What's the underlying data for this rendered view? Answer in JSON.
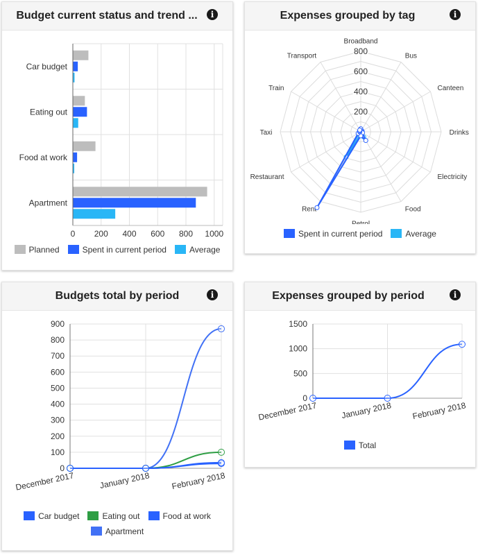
{
  "cards": {
    "budget_status": {
      "title": "Budget current status and trend ...",
      "info": "i",
      "legend": [
        {
          "label": "Planned",
          "color": "#bdbdbd"
        },
        {
          "label": "Spent in current period",
          "color": "#2962ff"
        },
        {
          "label": "Average",
          "color": "#29b6f6"
        }
      ]
    },
    "expenses_tag": {
      "title": "Expenses grouped by tag",
      "info": "i",
      "legend": [
        {
          "label": "Spent in current period",
          "color": "#2962ff"
        },
        {
          "label": "Average",
          "color": "#29b6f6"
        }
      ]
    },
    "budgets_period": {
      "title": "Budgets total by period",
      "info": "i",
      "legend_row1": [
        {
          "label": "Car budget",
          "color": "#2962ff"
        },
        {
          "label": "Eating out",
          "color": "#2e9e44"
        },
        {
          "label": "Food at work",
          "color": "#2962ff"
        }
      ],
      "legend_row2": [
        {
          "label": "Apartment",
          "color": "#4171f5"
        }
      ]
    },
    "expenses_period": {
      "title": "Expenses grouped by period",
      "info": "i",
      "legend": [
        {
          "label": "Total",
          "color": "#2962ff"
        }
      ]
    }
  },
  "chart_data": [
    {
      "type": "bar",
      "orientation": "horizontal",
      "categories": [
        "Car budget",
        "Eating out",
        "Food at work",
        "Apartment"
      ],
      "series": [
        {
          "name": "Planned",
          "color": "#bdbdbd",
          "values": [
            110,
            85,
            160,
            950
          ]
        },
        {
          "name": "Spent in current period",
          "color": "#2962ff",
          "values": [
            35,
            100,
            30,
            870
          ]
        },
        {
          "name": "Average",
          "color": "#29b6f6",
          "values": [
            12,
            38,
            10,
            300
          ]
        }
      ],
      "xlim": [
        0,
        1060
      ],
      "xticks": [
        0,
        200,
        400,
        600,
        800,
        1000
      ],
      "grid": true,
      "legend": "bottom"
    },
    {
      "type": "radar",
      "axes": [
        "Broadband",
        "Bus",
        "Canteen",
        "Drinks",
        "Electricity",
        "Food",
        "Petrol",
        "Rent",
        "Restaurant",
        "Taxi",
        "Train",
        "Transport"
      ],
      "rlim": [
        0,
        800
      ],
      "rticks": [
        200,
        400,
        600,
        800
      ],
      "series": [
        {
          "name": "Spent in current period",
          "color": "#2962ff",
          "values": [
            30,
            10,
            15,
            15,
            20,
            100,
            40,
            870,
            30,
            10,
            15,
            20
          ]
        },
        {
          "name": "Average",
          "color": "#29b6f6",
          "values": [
            20,
            10,
            10,
            10,
            15,
            60,
            25,
            290,
            20,
            5,
            10,
            15
          ]
        }
      ],
      "legend": "bottom"
    },
    {
      "type": "line",
      "x": [
        "December 2017",
        "January 2018",
        "February 2018"
      ],
      "series": [
        {
          "name": "Car budget",
          "color": "#2962ff",
          "values": [
            0,
            0,
            35
          ]
        },
        {
          "name": "Eating out",
          "color": "#2e9e44",
          "values": [
            0,
            0,
            100
          ]
        },
        {
          "name": "Food at work",
          "color": "#2962ff",
          "values": [
            0,
            0,
            30
          ]
        },
        {
          "name": "Apartment",
          "color": "#4171f5",
          "values": [
            0,
            0,
            870
          ]
        }
      ],
      "ylim": [
        0,
        900
      ],
      "yticks": [
        0,
        100,
        200,
        300,
        400,
        500,
        600,
        700,
        800,
        900
      ],
      "grid": true,
      "legend": "bottom"
    },
    {
      "type": "line",
      "x": [
        "December 2017",
        "January 2018",
        "February 2018"
      ],
      "series": [
        {
          "name": "Total",
          "color": "#2962ff",
          "values": [
            0,
            0,
            1090
          ]
        }
      ],
      "ylim": [
        0,
        1500
      ],
      "yticks": [
        0,
        500,
        1000,
        1500
      ],
      "grid": true,
      "legend": "bottom"
    }
  ]
}
